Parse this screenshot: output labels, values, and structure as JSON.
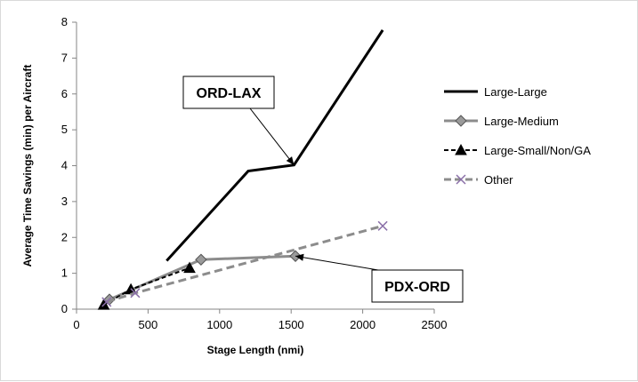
{
  "chart_data": {
    "type": "line",
    "xlabel": "Stage Length (nmi)",
    "ylabel": "Average Time Savings (min) per Aircraft",
    "xlim": [
      0,
      2500
    ],
    "ylim": [
      0,
      8
    ],
    "xticks": [
      0,
      500,
      1000,
      1500,
      2000,
      2500
    ],
    "yticks": [
      0,
      1,
      2,
      3,
      4,
      5,
      6,
      7,
      8
    ],
    "grid": "none",
    "legend": "right",
    "series": [
      {
        "name": "Large-Large",
        "color": "#000000",
        "style": "solid",
        "marker": "none",
        "x": [
          630,
          1200,
          1520,
          2140
        ],
        "y": [
          1.35,
          3.85,
          4.02,
          7.78
        ]
      },
      {
        "name": "Large-Medium",
        "color": "#8c8c8c",
        "style": "solid",
        "marker": "diamond",
        "x": [
          230,
          870,
          1530
        ],
        "y": [
          0.27,
          1.38,
          1.48
        ]
      },
      {
        "name": "Large-Small/Non/GA",
        "color": "#000000",
        "style": "dashed",
        "marker": "triangle",
        "x": [
          190,
          380,
          790
        ],
        "y": [
          0.12,
          0.55,
          1.15
        ]
      },
      {
        "name": "Other",
        "color": "#8c8c8c",
        "style": "dashed",
        "marker": "x",
        "x": [
          210,
          410,
          2140
        ],
        "y": [
          0.2,
          0.45,
          2.32
        ]
      }
    ],
    "annotations": [
      {
        "text": "ORD-LAX",
        "target_x": 1520,
        "target_y": 4.02
      },
      {
        "text": "PDX-ORD",
        "target_x": 1530,
        "target_y": 1.48
      }
    ]
  }
}
